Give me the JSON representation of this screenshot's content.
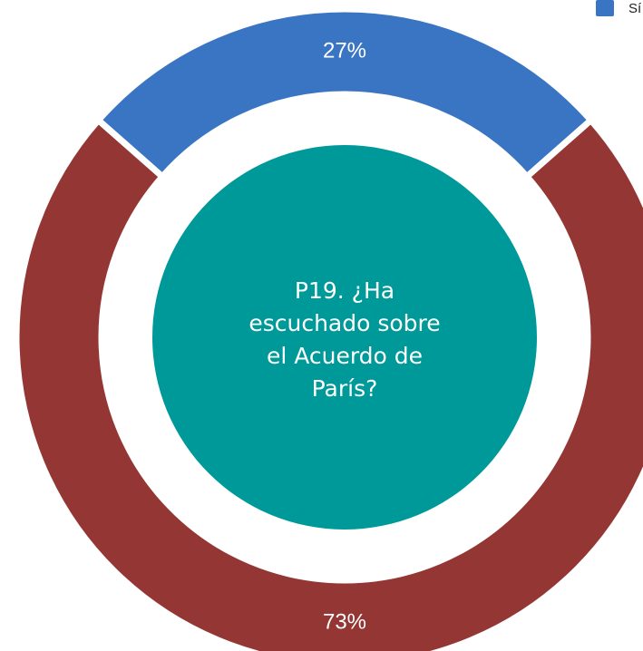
{
  "chart_data": {
    "type": "donut",
    "title": "P19. ¿Ha escuchado sobre el Acuerdo de París?",
    "categories": [
      "Sí",
      null
    ],
    "values": [
      27,
      73
    ],
    "value_labels": [
      "27%",
      "73%"
    ],
    "colors": [
      "#3a75c4",
      "#943634"
    ],
    "center_color": "#009999",
    "legend": "top-right"
  }
}
